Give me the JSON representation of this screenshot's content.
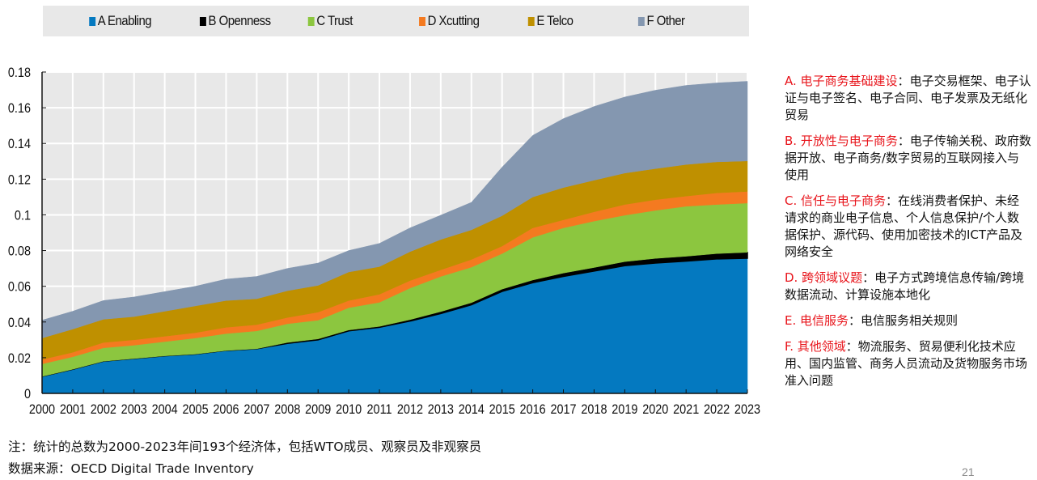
{
  "chart_data": {
    "type": "area",
    "stacked": true,
    "title": "",
    "xlabel": "",
    "ylabel": "",
    "x": [
      2000,
      2001,
      2002,
      2003,
      2004,
      2005,
      2006,
      2007,
      2008,
      2009,
      2010,
      2011,
      2012,
      2013,
      2014,
      2015,
      2016,
      2017,
      2018,
      2019,
      2020,
      2021,
      2022,
      2023
    ],
    "x_tick_labels": [
      "2000",
      "2001",
      "2002",
      "2003",
      "2004",
      "2005",
      "2006",
      "2007",
      "2008",
      "2009",
      "2010",
      "2011",
      "2012",
      "2013",
      "2014",
      "2015",
      "2016",
      "2017",
      "2018",
      "2019",
      "2020",
      "2021",
      "2022",
      "2023"
    ],
    "ylim": [
      0,
      0.18
    ],
    "y_ticks": [
      0,
      0.02,
      0.04,
      0.06,
      0.08,
      0.1,
      0.12,
      0.14,
      0.16,
      0.18
    ],
    "y_tick_labels": [
      "0",
      "0.02",
      "0.04",
      "0.06",
      "0.08",
      "0.1",
      "0.12",
      "0.14",
      "0.16",
      "0.18"
    ],
    "grid": true,
    "legend_position": "top",
    "series": [
      {
        "name": "A Enabling",
        "color": "#0479c0",
        "values": [
          0.0095,
          0.0135,
          0.018,
          0.0195,
          0.021,
          0.022,
          0.024,
          0.025,
          0.028,
          0.03,
          0.035,
          0.037,
          0.0405,
          0.0447,
          0.0496,
          0.0571,
          0.062,
          0.0655,
          0.0685,
          0.0715,
          0.073,
          0.0741,
          0.0753,
          0.0757
        ]
      },
      {
        "name": "B Openness",
        "color": "#000000",
        "values": [
          0,
          0,
          0,
          0,
          0,
          0,
          0,
          0,
          0.0005,
          0.0005,
          0.0005,
          0.0005,
          0.0008,
          0.0011,
          0.0012,
          0.0013,
          0.0015,
          0.0019,
          0.002,
          0.0023,
          0.0026,
          0.0027,
          0.003,
          0.0033
        ]
      },
      {
        "name": "C Trust",
        "color": "#8cc63f",
        "values": [
          0.007,
          0.007,
          0.0075,
          0.0075,
          0.008,
          0.009,
          0.0095,
          0.01,
          0.0105,
          0.0105,
          0.0125,
          0.0135,
          0.0177,
          0.0197,
          0.0199,
          0.0199,
          0.0239,
          0.0253,
          0.026,
          0.026,
          0.0269,
          0.028,
          0.0275,
          0.0276
        ]
      },
      {
        "name": "D Xcutting",
        "color": "#f47a20",
        "values": [
          0.0025,
          0.0025,
          0.003,
          0.003,
          0.003,
          0.003,
          0.0035,
          0.0035,
          0.0035,
          0.0045,
          0.004,
          0.0045,
          0.0042,
          0.0037,
          0.0043,
          0.0042,
          0.0053,
          0.0045,
          0.0052,
          0.006,
          0.006,
          0.0057,
          0.0065,
          0.0065
        ]
      },
      {
        "name": "E Telco",
        "color": "#bf9000",
        "values": [
          0.012,
          0.013,
          0.013,
          0.013,
          0.014,
          0.015,
          0.015,
          0.0145,
          0.015,
          0.015,
          0.016,
          0.0155,
          0.0162,
          0.017,
          0.0166,
          0.017,
          0.0173,
          0.0181,
          0.0177,
          0.0176,
          0.0174,
          0.0177,
          0.0174,
          0.0171
        ]
      },
      {
        "name": "F Other",
        "color": "#8497b0",
        "values": [
          0.01,
          0.01,
          0.0105,
          0.011,
          0.011,
          0.011,
          0.012,
          0.0125,
          0.0125,
          0.0125,
          0.012,
          0.013,
          0.0133,
          0.0136,
          0.0154,
          0.0272,
          0.0345,
          0.0386,
          0.0413,
          0.0426,
          0.0439,
          0.0443,
          0.0442,
          0.0446
        ]
      }
    ]
  },
  "notes": [
    {
      "head": "A. 电子商务基础建设",
      "sep": "：",
      "body": "电子交易框架、电子认证与电子签名、电子合同、电子发票及无纸化贸易"
    },
    {
      "head": "B. 开放性与电子商务",
      "sep": "：",
      "body": "电子传输关税、政府数据开放、电子商务/数字贸易的互联网接入与使用"
    },
    {
      "head": "C. 信任与电子商务",
      "sep": "：",
      "body": "在线消费者保护、未经请求的商业电子信息、个人信息保护/个人数据保护、源代码、使用加密技术的ICT产品及网络安全"
    },
    {
      "head": "D. 跨领域议题",
      "sep": "：",
      "body": "电子方式跨境信息传输/跨境数据流动、计算设施本地化"
    },
    {
      "head": "E. 电信服务",
      "sep": "：",
      "body": "电信服务相关规则"
    },
    {
      "head": "F. 其他领域",
      "sep": "：",
      "body": "物流服务、贸易便利化技术应用、国内监管、商务人员流动及货物服务市场准入问题"
    }
  ],
  "footer": {
    "note": "注：统计的总数为2000-2023年间193个经济体，包括WTO成员、观察员及非观察员",
    "source": "数据来源：OECD Digital Trade Inventory"
  },
  "page_number": "21"
}
